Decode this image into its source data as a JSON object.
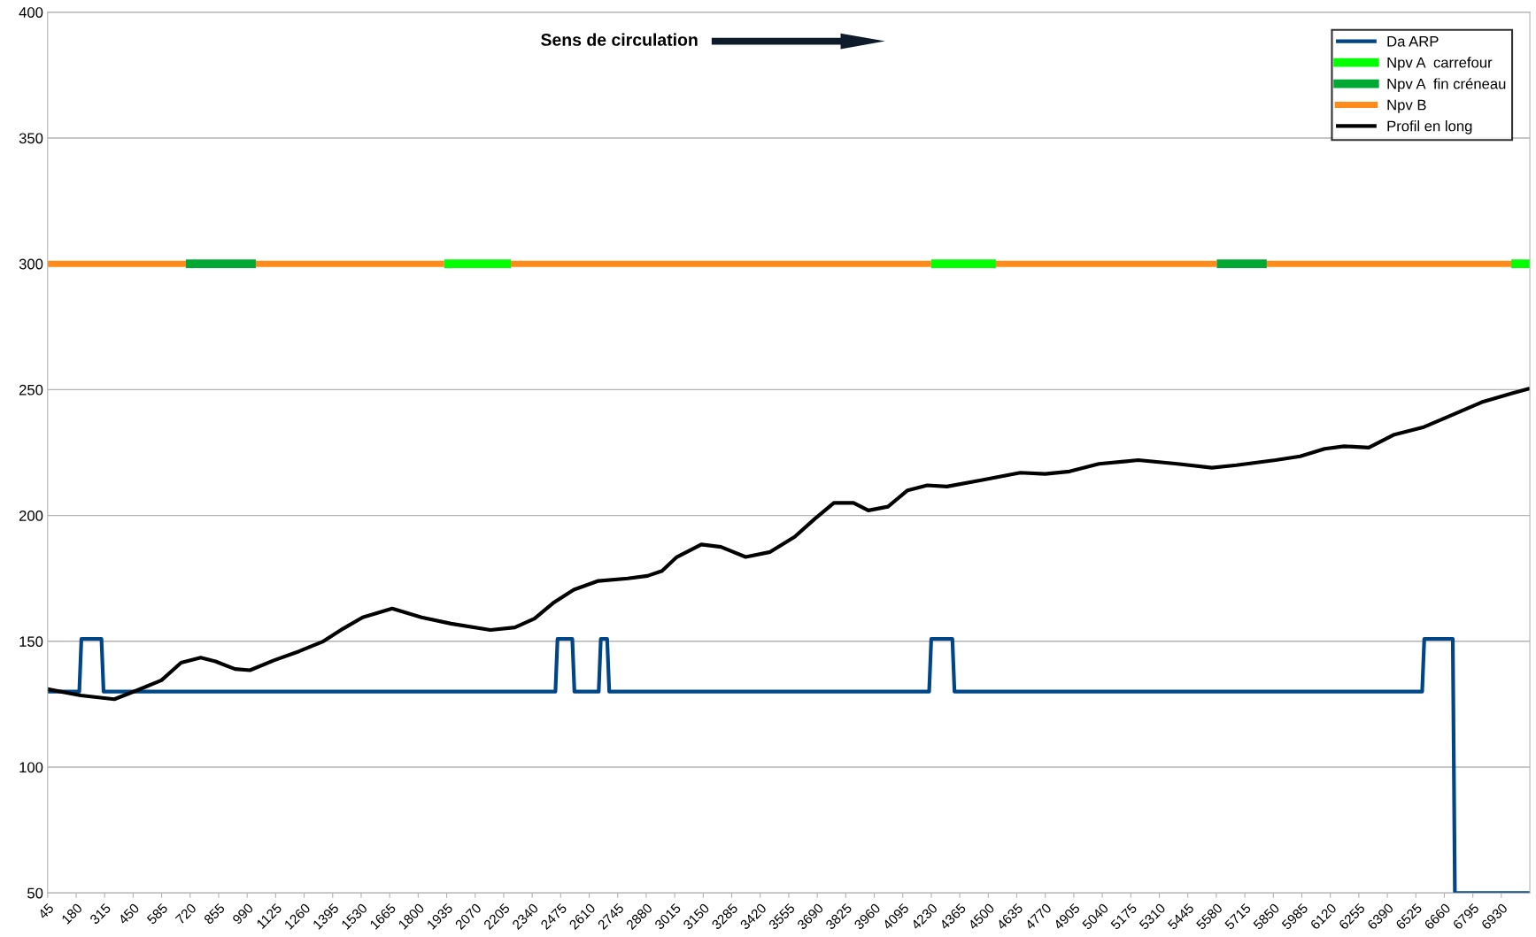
{
  "chart_data": {
    "type": "line",
    "annotations": [
      "Sens de circulation"
    ],
    "series": [
      {
        "name": "Da ARP",
        "color": "#004586",
        "x": [
          45,
          195,
          205,
          300,
          310,
          2450,
          2460,
          2530,
          2540,
          2655,
          2665,
          2695,
          2705,
          4220,
          4230,
          4330,
          4340,
          6555,
          6565,
          6700,
          6710,
          7065
        ],
        "values": [
          130,
          130,
          151,
          151,
          130,
          130,
          151,
          151,
          130,
          130,
          151,
          151,
          130,
          130,
          151,
          151,
          130,
          130,
          151,
          151,
          50,
          50
        ]
      },
      {
        "name": "Npv A  carrefour",
        "color": "#00ff00",
        "x": [
          1923,
          2239,
          2240,
          4229,
          4536,
          4537,
          6977,
          7065
        ],
        "values": [
          300,
          300,
          null,
          300,
          300,
          null,
          300,
          300
        ]
      },
      {
        "name": "Npv A  fin créneau",
        "color": "#00a933",
        "x": [
          700,
          1031,
          1032,
          5582,
          5819
        ],
        "values": [
          300,
          300,
          null,
          300,
          300
        ]
      },
      {
        "name": "Npv B",
        "color": "#ff8c1a",
        "x": [
          45,
          700,
          701,
          1031,
          1923,
          1924,
          2239,
          4229,
          4230,
          4536,
          5582,
          5583,
          5819,
          6977
        ],
        "values": [
          300,
          300,
          null,
          300,
          300,
          null,
          300,
          300,
          null,
          300,
          300,
          null,
          300,
          300
        ]
      },
      {
        "name": "Profil en long",
        "color": "#000000",
        "x": [
          45,
          203,
          361,
          468,
          584,
          677,
          770,
          840,
          933,
          1003,
          1119,
          1235,
          1351,
          1444,
          1537,
          1677,
          1816,
          1956,
          2142,
          2258,
          2351,
          2444,
          2537,
          2653,
          2793,
          2886,
          2955,
          3025,
          3141,
          3234,
          3351,
          3467,
          3583,
          3676,
          3769,
          3862,
          3932,
          4025,
          4118,
          4211,
          4304,
          4466,
          4652,
          4769,
          4885,
          5024,
          5210,
          5396,
          5559,
          5675,
          5861,
          5977,
          6093,
          6186,
          6302,
          6419,
          6558,
          6698,
          6837,
          6977,
          7065
        ],
        "values": [
          131,
          128.5,
          127,
          130.5,
          134.5,
          141.5,
          143.5,
          142,
          139,
          138.5,
          142.5,
          146,
          150,
          155,
          159.5,
          163,
          159.5,
          157,
          154.5,
          155.5,
          159,
          165.5,
          170.5,
          174,
          175,
          176,
          178,
          183.5,
          188.5,
          187.5,
          183.5,
          185.5,
          191.5,
          198.5,
          205,
          205,
          202,
          203.5,
          210,
          212,
          211.5,
          214,
          217,
          216.5,
          217.5,
          220.5,
          222,
          220.5,
          219,
          220,
          222,
          223.5,
          226.5,
          227.5,
          227,
          232,
          235,
          240,
          245,
          248.5,
          250.5
        ]
      }
    ],
    "xlim": [
      45,
      7065
    ],
    "xticks": [
      45,
      180,
      315,
      450,
      585,
      720,
      855,
      990,
      1125,
      1260,
      1395,
      1530,
      1665,
      1800,
      1935,
      2070,
      2205,
      2340,
      2475,
      2610,
      2745,
      2880,
      3015,
      3150,
      3285,
      3420,
      3555,
      3690,
      3825,
      3960,
      4095,
      4230,
      4365,
      4500,
      4635,
      4770,
      4905,
      5040,
      5175,
      5310,
      5445,
      5580,
      5715,
      5850,
      5985,
      6120,
      6255,
      6390,
      6525,
      6660,
      6795,
      6930
    ],
    "ylim": [
      50,
      400
    ],
    "yticks": [
      50,
      100,
      150,
      200,
      250,
      300,
      350,
      400
    ],
    "grid": "y",
    "legend": "top right",
    "marker": "none",
    "line_style": "solid"
  }
}
